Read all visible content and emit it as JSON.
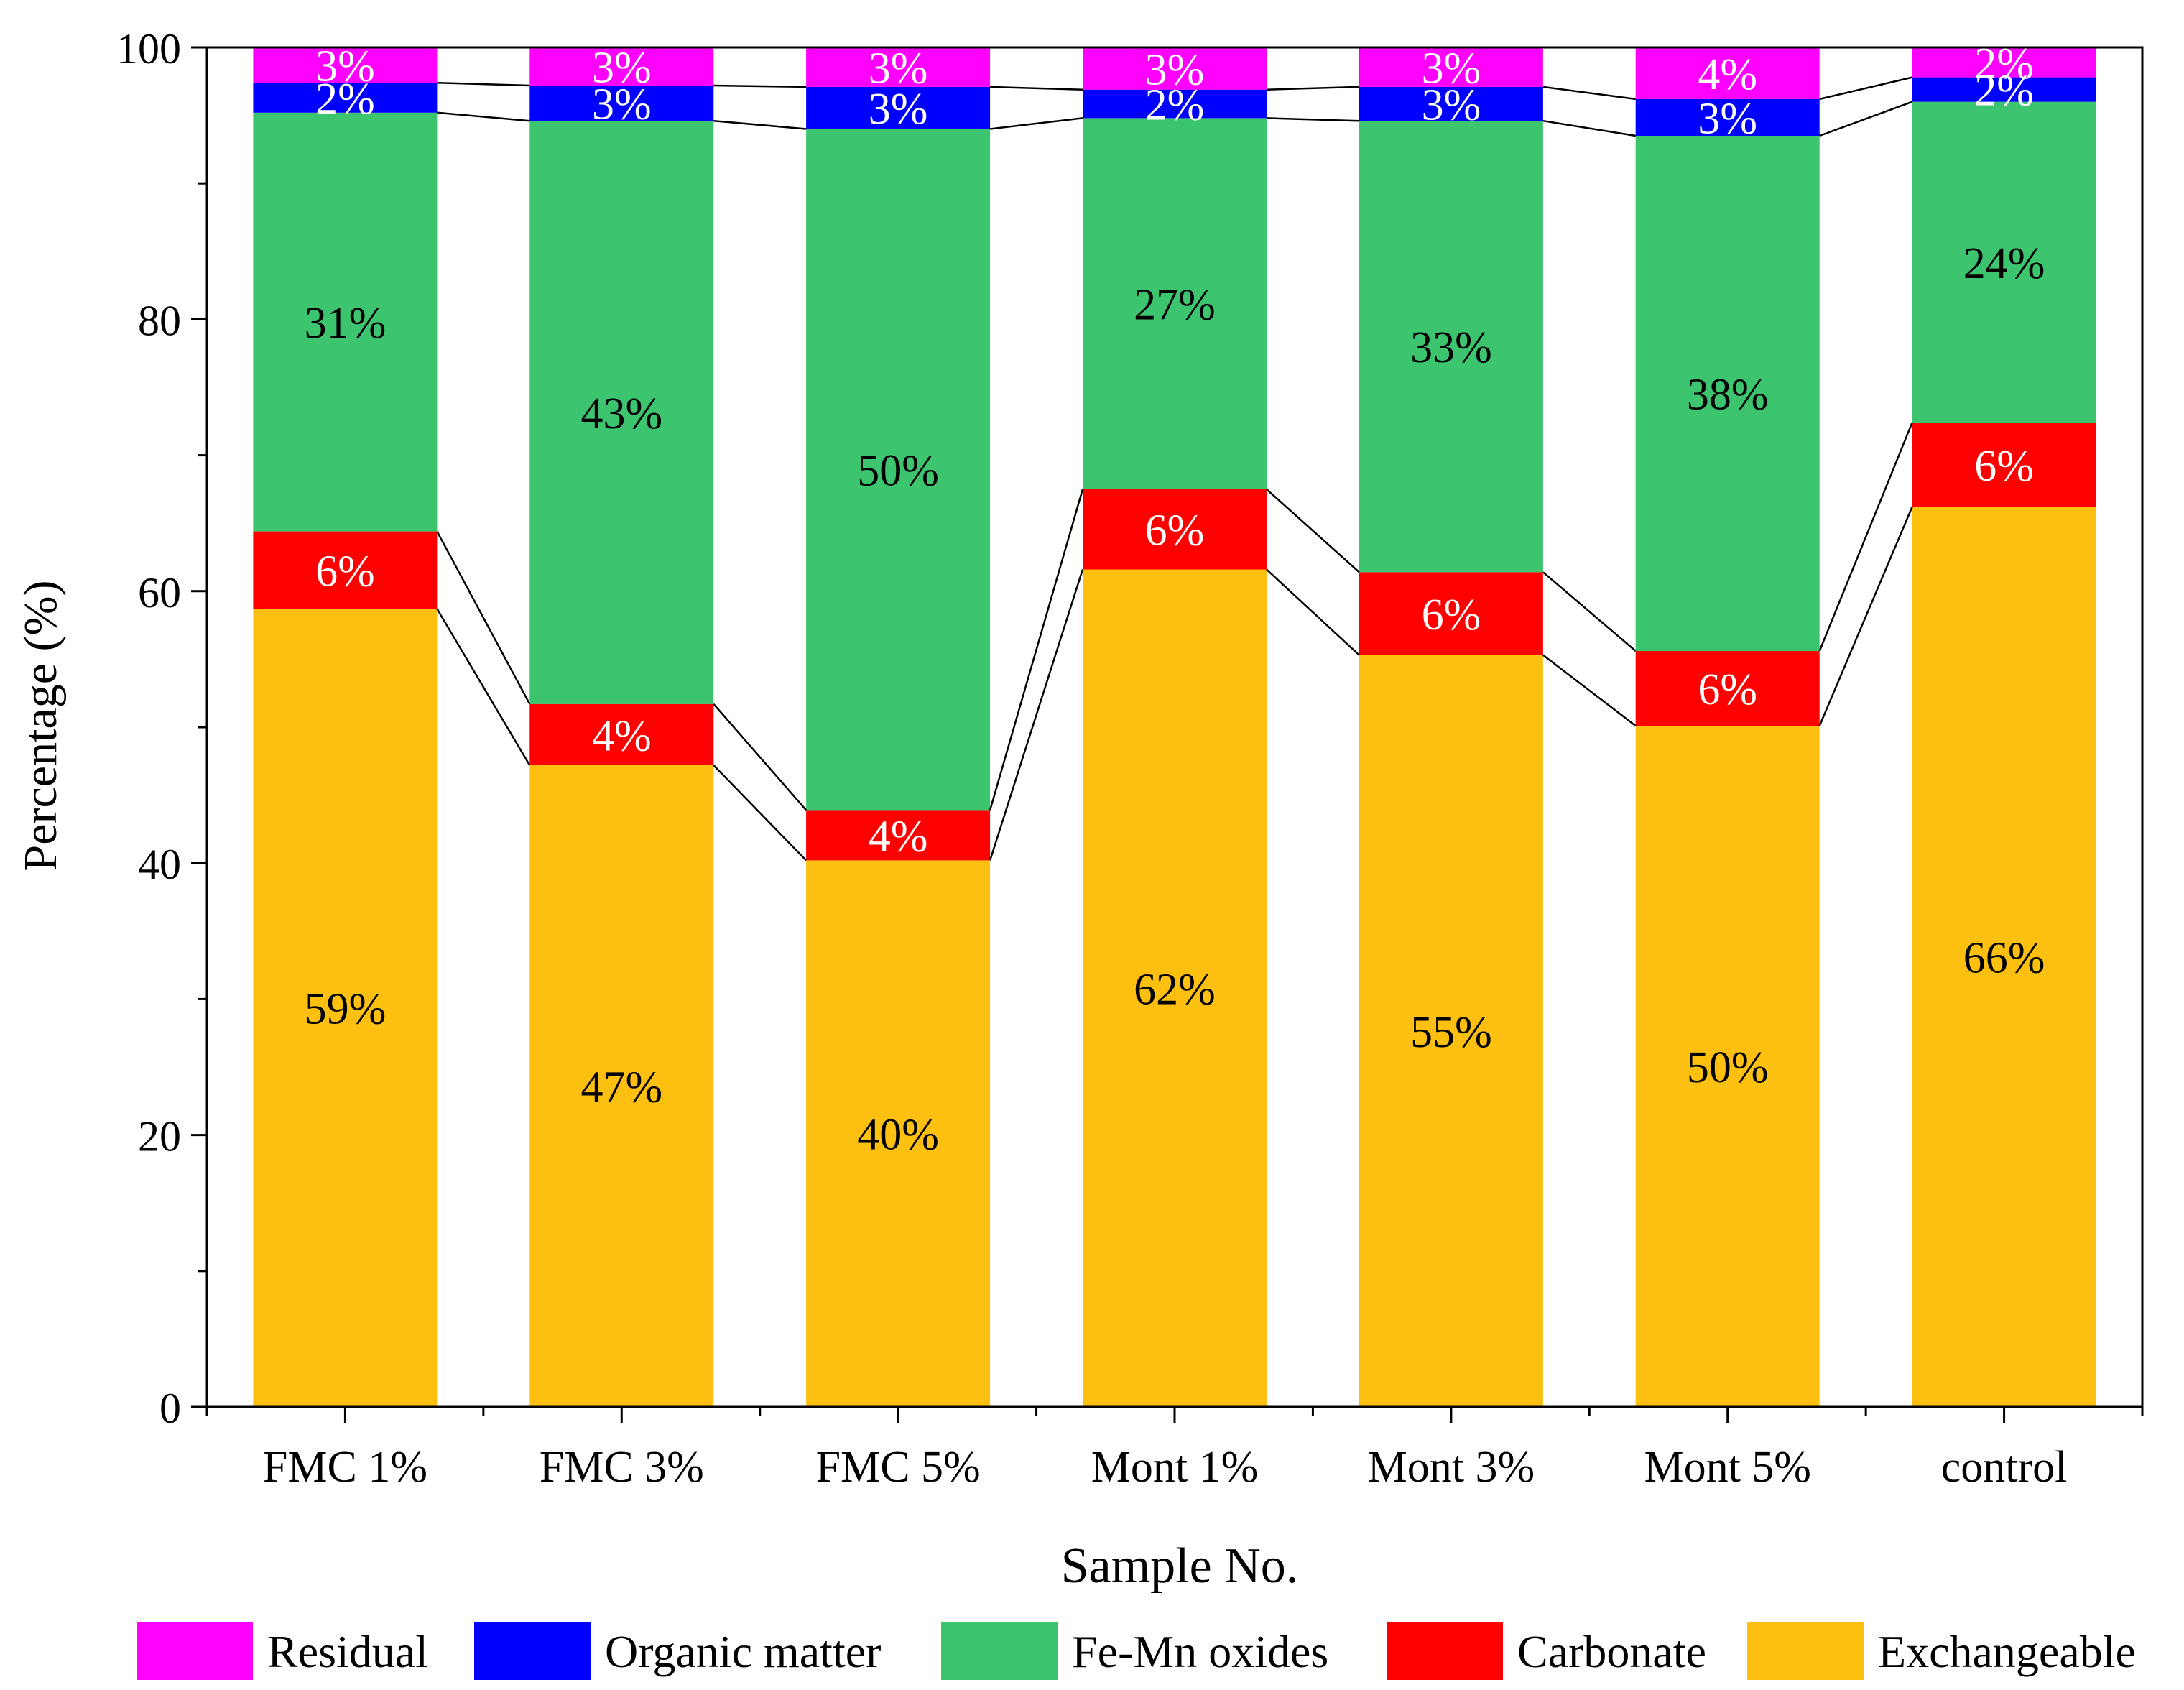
{
  "chart_data": {
    "type": "stacked-bar",
    "title": "",
    "xlabel": "Sample No.",
    "ylabel": "Percentage (%)",
    "ylim": [
      0,
      100
    ],
    "yticks": [
      0,
      20,
      40,
      60,
      80,
      100
    ],
    "categories": [
      "FMC 1%",
      "FMC 3%",
      "FMC 5%",
      "Mont 1%",
      "Mont 3%",
      "Mont 5%",
      "control"
    ],
    "series": [
      {
        "name": "Exchangeable",
        "color": "#FDC010",
        "label_color": "#000000",
        "values": [
          58.7,
          47.2,
          40.2,
          61.6,
          55.3,
          50.1,
          66.2
        ],
        "labels": [
          "59%",
          "47%",
          "40%",
          "62%",
          "55%",
          "50%",
          "66%"
        ]
      },
      {
        "name": "Carbonate",
        "color": "#FF0000",
        "label_color": "#ffffff",
        "values": [
          5.7,
          4.5,
          3.7,
          5.9,
          6.1,
          5.5,
          6.2
        ],
        "labels": [
          "6%",
          "4%",
          "4%",
          "6%",
          "6%",
          "6%",
          "6%"
        ]
      },
      {
        "name": "Fe-Mn oxides",
        "color": "#3CC46E",
        "label_color": "#000000",
        "values": [
          30.8,
          42.9,
          50.1,
          27.3,
          33.2,
          37.9,
          23.6
        ],
        "labels": [
          "31%",
          "43%",
          "50%",
          "27%",
          "33%",
          "38%",
          "24%"
        ]
      },
      {
        "name": "Organic matter",
        "color": "#0000FF",
        "label_color": "#ffffff",
        "values": [
          2.2,
          2.6,
          3.1,
          2.1,
          2.5,
          2.7,
          1.8
        ],
        "labels": [
          "2%",
          "3%",
          "3%",
          "2%",
          "3%",
          "3%",
          "2%"
        ]
      },
      {
        "name": "Residual",
        "color": "#FF00FF",
        "label_color": "#ffffff",
        "values": [
          2.6,
          2.8,
          2.9,
          3.1,
          2.9,
          3.8,
          2.2
        ],
        "labels": [
          "3%",
          "3%",
          "3%",
          "3%",
          "3%",
          "4%",
          "2%"
        ]
      }
    ],
    "legend": {
      "position": "bottom",
      "order": [
        "Residual",
        "Organic matter",
        "Fe-Mn oxides",
        "Carbonate",
        "Exchangeable"
      ]
    },
    "connector_lines": true
  }
}
